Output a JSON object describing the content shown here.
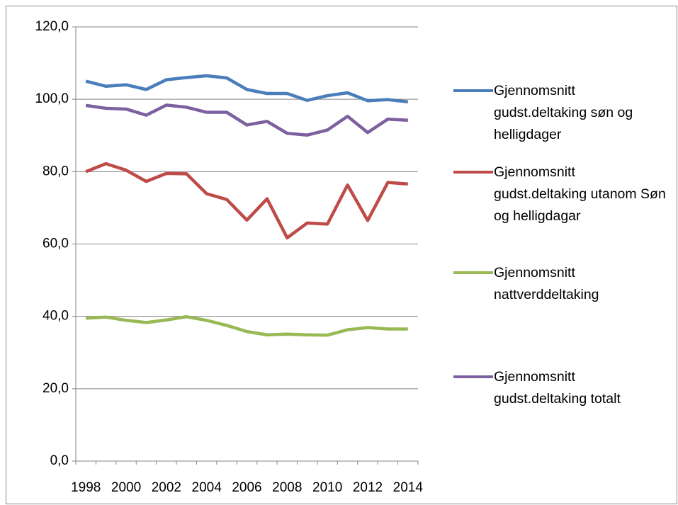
{
  "chart_data": {
    "type": "line",
    "categories": [
      "1998",
      null,
      "2000",
      null,
      "2002",
      null,
      "2004",
      null,
      "2006",
      null,
      "2008",
      null,
      "2010",
      null,
      "2012",
      null,
      "2014"
    ],
    "series": [
      {
        "name": "Gjennomsnitt gudst.deltaking søn og helligdager",
        "color": "#4a7ebb",
        "values": [
          105.0,
          103.6,
          104.0,
          102.7,
          105.4,
          106.0,
          106.5,
          105.9,
          102.7,
          101.6,
          101.6,
          99.7,
          101.0,
          101.8,
          99.6,
          99.9,
          99.3
        ]
      },
      {
        "name": "Gjennomsnitt gudst.deltaking utanom Søn og helligdagar",
        "color": "#be4b48",
        "values": [
          80.0,
          82.2,
          80.4,
          77.3,
          79.5,
          79.4,
          73.9,
          72.3,
          66.6,
          72.5,
          61.7,
          65.8,
          65.5,
          76.3,
          66.5,
          77.0,
          76.6
        ]
      },
      {
        "name": "Gjennomsnitt nattverddeltaking",
        "color": "#98b954",
        "values": [
          39.5,
          39.8,
          38.9,
          38.3,
          39.0,
          39.9,
          38.9,
          37.5,
          35.8,
          34.9,
          35.1,
          34.9,
          34.8,
          36.3,
          36.9,
          36.5,
          36.5
        ]
      },
      {
        "name": "Gjennomsnitt gudst.deltaking totalt",
        "color": "#7d60a0",
        "values": [
          98.3,
          97.5,
          97.3,
          95.6,
          98.4,
          97.8,
          96.4,
          96.4,
          92.9,
          93.9,
          90.6,
          90.1,
          91.5,
          95.3,
          90.8,
          94.5,
          94.2
        ]
      }
    ],
    "ylim": [
      0,
      120
    ],
    "yticks": [
      {
        "value": 0,
        "label": "0,0"
      },
      {
        "value": 20,
        "label": "20,0"
      },
      {
        "value": 40,
        "label": "40,0"
      },
      {
        "value": 60,
        "label": "60,0"
      },
      {
        "value": 80,
        "label": "80,0"
      },
      {
        "value": 100,
        "label": "100,0"
      },
      {
        "value": 120,
        "label": "120,0"
      }
    ],
    "grid": true,
    "legend": "right"
  }
}
